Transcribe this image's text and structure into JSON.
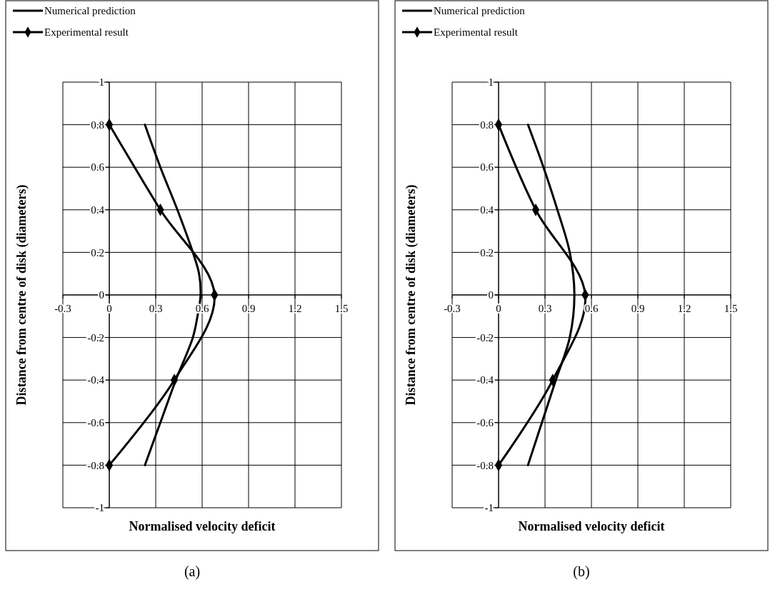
{
  "chart_data": [
    {
      "type": "line",
      "xlabel": "Normalised velocity deficit",
      "ylabel": "Distance from centre of disk  (diameters)",
      "annotations": [
        "(a)"
      ],
      "xlim": [
        -0.3,
        1.5
      ],
      "xticks": [
        -0.3,
        0,
        0.3,
        0.6,
        0.9,
        1.2,
        1.5
      ],
      "ylim": [
        -1,
        1
      ],
      "yticks": [
        -1,
        -0.8,
        -0.6,
        -0.4,
        -0.2,
        0,
        0.2,
        0.4,
        0.6,
        0.8,
        1
      ],
      "grid": true,
      "legend": "top left",
      "line_style": "solid",
      "series": [
        {
          "name": "Numerical prediction",
          "color": "#000000",
          "marker": "none",
          "x": [
            0.23,
            0.33,
            0.44,
            0.54,
            0.58,
            0.59,
            0.57,
            0.54,
            0.43,
            0.33,
            0.23
          ],
          "values": [
            0.8,
            0.6,
            0.4,
            0.2,
            0.1,
            0,
            -0.1,
            -0.2,
            -0.4,
            -0.6,
            -0.8
          ]
        },
        {
          "name": "Experimental result",
          "color": "#000000",
          "marker": "diamond",
          "x": [
            0,
            0.33,
            0.68,
            0.42,
            0
          ],
          "values": [
            0.8,
            0.4,
            0,
            -0.4,
            -0.8
          ]
        }
      ]
    },
    {
      "type": "line",
      "xlabel": "Normalised velocity deficit",
      "ylabel": "Distance from centre of disk  (diameters)",
      "annotations": [
        "(b)"
      ],
      "xlim": [
        -0.3,
        1.5
      ],
      "xticks": [
        -0.3,
        0,
        0.3,
        0.6,
        0.9,
        1.2,
        1.5
      ],
      "ylim": [
        -1,
        1
      ],
      "yticks": [
        -1,
        -0.8,
        -0.6,
        -0.4,
        -0.2,
        0,
        0.2,
        0.4,
        0.6,
        0.8,
        1
      ],
      "grid": true,
      "legend": "top left",
      "line_style": "solid",
      "series": [
        {
          "name": "Numerical prediction",
          "color": "#000000",
          "marker": "none",
          "x": [
            0.19,
            0.29,
            0.38,
            0.46,
            0.49,
            0.46,
            0.37,
            0.28,
            0.19
          ],
          "values": [
            0.8,
            0.6,
            0.4,
            0.2,
            0,
            -0.2,
            -0.4,
            -0.6,
            -0.8
          ]
        },
        {
          "name": "Experimental result",
          "color": "#000000",
          "marker": "diamond",
          "x": [
            0,
            0.24,
            0.56,
            0.35,
            0
          ],
          "values": [
            0.8,
            0.4,
            0,
            -0.4,
            -0.8
          ]
        }
      ]
    }
  ]
}
